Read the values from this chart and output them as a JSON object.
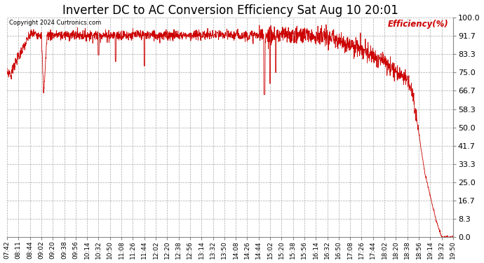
{
  "title": "Inverter DC to AC Conversion Efficiency Sat Aug 10 20:01",
  "copyright": "Copyright 2024 Curtronics.com",
  "legend_label": "Efficiency(%)",
  "line_color": "#cc0000",
  "background_color": "#ffffff",
  "grid_color": "#aaaaaa",
  "yticks": [
    0.0,
    8.3,
    16.7,
    25.0,
    33.3,
    41.7,
    50.0,
    58.3,
    66.7,
    75.0,
    83.3,
    91.7,
    100.0
  ],
  "ylim": [
    0.0,
    100.0
  ],
  "title_fontsize": 12,
  "xlabel_fontsize": 6.5,
  "ylabel_fontsize": 8,
  "xtick_labels": [
    "07:42",
    "08:11",
    "08:44",
    "09:02",
    "09:20",
    "09:38",
    "09:56",
    "10:14",
    "10:32",
    "10:50",
    "11:08",
    "11:26",
    "11:44",
    "12:02",
    "12:20",
    "12:38",
    "12:56",
    "13:14",
    "13:32",
    "13:50",
    "14:08",
    "14:26",
    "14:44",
    "15:02",
    "15:20",
    "15:38",
    "15:56",
    "16:14",
    "16:32",
    "16:50",
    "17:08",
    "17:26",
    "17:44",
    "18:02",
    "18:20",
    "18:38",
    "18:56",
    "19:14",
    "19:32",
    "19:50"
  ]
}
